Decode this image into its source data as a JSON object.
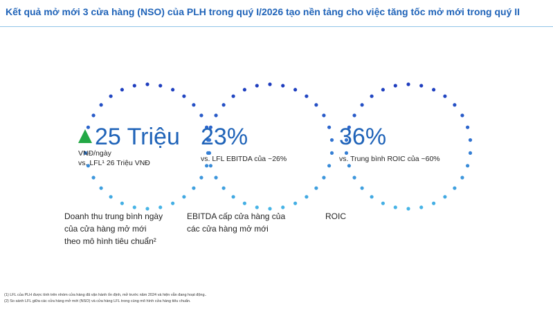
{
  "header": {
    "title": "Kết quả mở mới 3 cửa hàng (NSO) của PLH trong quý I/2026 tạo nền tảng cho việc tăng tốc mở mới trong quý II"
  },
  "cards": [
    {
      "value": "25 Triệu",
      "sub": [
        "VNĐ/ngày",
        "vs. LFL¹ 26 Triệu VNĐ"
      ],
      "caption": [
        "Doanh thu trung bình ngày",
        "của cửa hàng mở mới",
        "theo mô hình tiêu chuẩn²"
      ]
    },
    {
      "value": "23%",
      "sub": [
        "vs. LFL EBITDA của ~26%"
      ],
      "caption": [
        "EBITDA cấp cửa hàng của",
        "các cửa hàng mở mới"
      ]
    },
    {
      "value": "36%",
      "sub": [
        "vs. Trung bình ROIC của ~60%"
      ],
      "caption": [
        "ROIC"
      ]
    }
  ],
  "footnotes": [
    "(1) LFL của PLH được tính trên nhóm cửa hàng đã vận hành ổn định, mở trước năm 2024 và hiện vẫn đang hoạt động..",
    "(2) So sánh LFL giữa các cửa hàng mở mới (NSO) và cửa hàng LFL trong cùng mô hình cửa hàng tiêu chuẩn."
  ]
}
